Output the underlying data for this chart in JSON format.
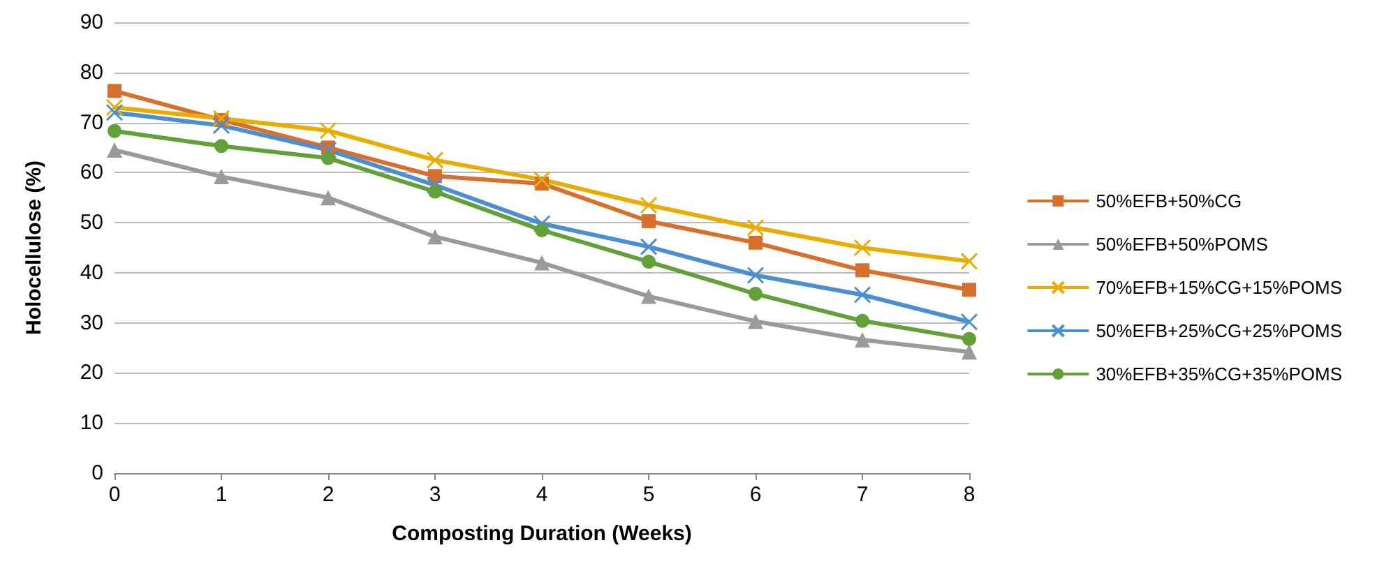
{
  "chart_data": {
    "type": "line",
    "xlabel": "Composting Duration (Weeks)",
    "ylabel": "Holocellulose (%)",
    "x": [
      0,
      1,
      2,
      3,
      4,
      5,
      6,
      7,
      8
    ],
    "xlim": [
      0,
      8
    ],
    "xticks": [
      0,
      1,
      2,
      3,
      4,
      5,
      6,
      7,
      8
    ],
    "ylim": [
      0,
      90
    ],
    "yticks": [
      0,
      10,
      20,
      30,
      40,
      50,
      60,
      70,
      80,
      90
    ],
    "grid": "y",
    "legend": "right",
    "line_style": "solid",
    "series": [
      {
        "name": "50%EFB+50%CG",
        "color": "#d86f2c",
        "marker": "square",
        "values": [
          76.3,
          70.5,
          65,
          59.3,
          57.8,
          50.3,
          46,
          40.5,
          36.6
        ]
      },
      {
        "name": "50%EFB+50%POMS",
        "color": "#9a9a9a",
        "marker": "triangle",
        "values": [
          64.5,
          59.2,
          55,
          47.2,
          42,
          35.3,
          30.3,
          26.6,
          24.2
        ]
      },
      {
        "name": "70%EFB+15%CG+15%POMS",
        "color": "#e8ad00",
        "marker": "cross",
        "values": [
          73,
          70.8,
          68.4,
          62.5,
          58.6,
          53.5,
          49,
          45,
          42.3
        ]
      },
      {
        "name": "50%EFB+25%CG+25%POMS",
        "color": "#4b8fd1",
        "marker": "cross",
        "values": [
          72,
          69.4,
          64.5,
          57.5,
          49.8,
          45.2,
          39.5,
          35.6,
          30.2
        ]
      },
      {
        "name": "30%EFB+35%CG+35%POMS",
        "color": "#62a13a",
        "marker": "circle",
        "values": [
          68.3,
          65.3,
          62.9,
          56.2,
          48.5,
          42.2,
          35.8,
          30.4,
          26.8
        ]
      }
    ]
  }
}
